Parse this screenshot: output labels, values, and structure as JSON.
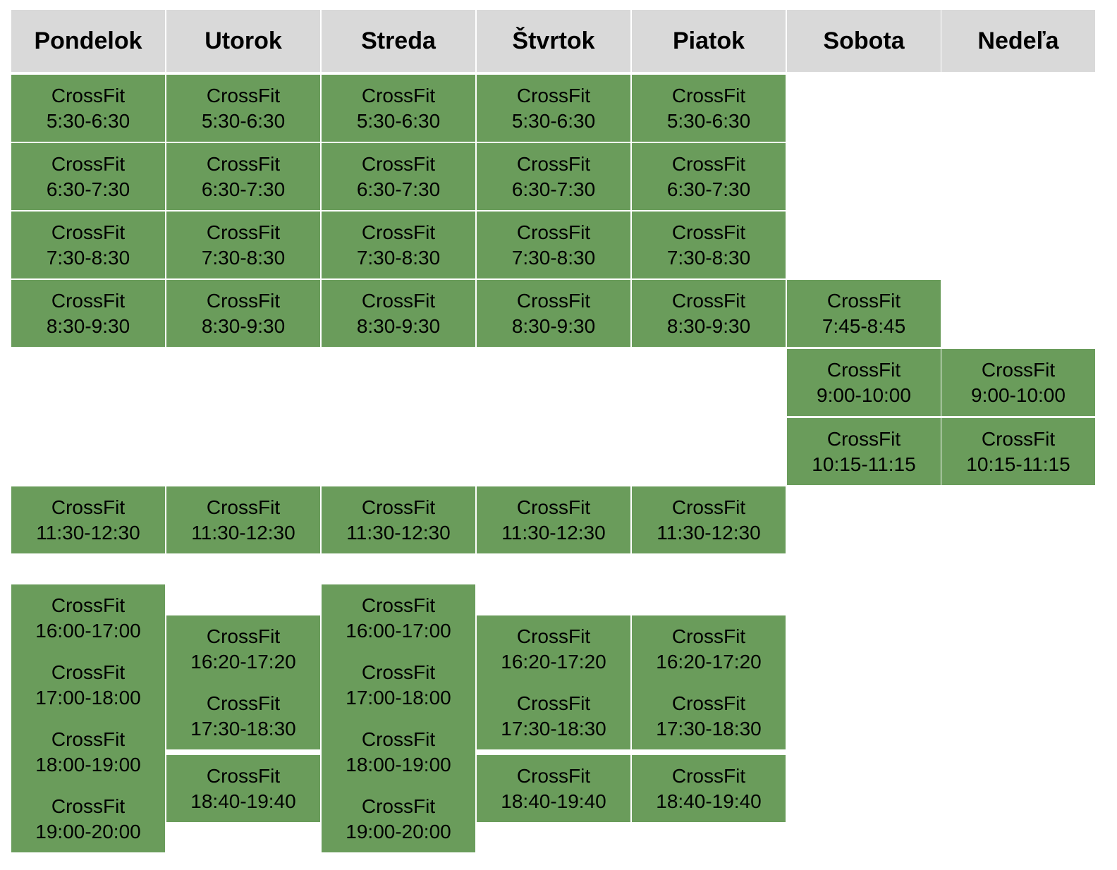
{
  "days": [
    "Pondelok",
    "Utorok",
    "Streda",
    "Štvrtok",
    "Piatok",
    "Sobota",
    "Nedeľa"
  ],
  "class_name": "CrossFit",
  "colors": {
    "header_bg": "#d9d9d9",
    "cell_bg": "#6a9c5b"
  },
  "schedule": [
    [
      "5:30-6:30",
      "6:30-7:30",
      "7:30-8:30",
      "8:30-9:30",
      "11:30-12:30",
      "16:00-17:00",
      "17:00-18:00",
      "18:00-19:00",
      "19:00-20:00"
    ],
    [
      "5:30-6:30",
      "6:30-7:30",
      "7:30-8:30",
      "8:30-9:30",
      "11:30-12:30",
      "16:20-17:20",
      "17:30-18:30",
      "18:40-19:40"
    ],
    [
      "5:30-6:30",
      "6:30-7:30",
      "7:30-8:30",
      "8:30-9:30",
      "11:30-12:30",
      "16:00-17:00",
      "17:00-18:00",
      "18:00-19:00",
      "19:00-20:00"
    ],
    [
      "5:30-6:30",
      "6:30-7:30",
      "7:30-8:30",
      "8:30-9:30",
      "11:30-12:30",
      "16:20-17:20",
      "17:30-18:30",
      "18:40-19:40"
    ],
    [
      "5:30-6:30",
      "6:30-7:30",
      "7:30-8:30",
      "8:30-9:30",
      "11:30-12:30",
      "16:20-17:20",
      "17:30-18:30",
      "18:40-19:40"
    ],
    [
      "7:45-8:45",
      "9:00-10:00",
      "10:15-11:15"
    ],
    [
      "9:00-10:00",
      "10:15-11:15"
    ]
  ]
}
